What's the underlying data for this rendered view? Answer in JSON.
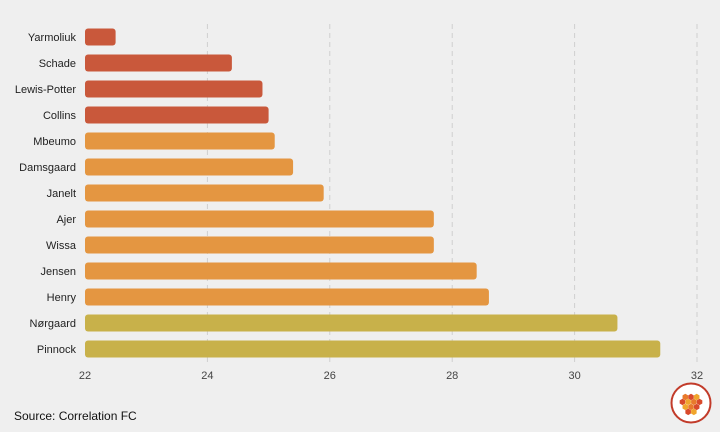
{
  "chart_data": {
    "type": "bar",
    "orientation": "horizontal",
    "categories": [
      "Yarmoliuk",
      "Schade",
      "Lewis-Potter",
      "Collins",
      "Mbeumo",
      "Damsgaard",
      "Janelt",
      "Ajer",
      "Wissa",
      "Jensen",
      "Henry",
      "Nørgaard",
      "Pinnock"
    ],
    "values": [
      22.5,
      24.4,
      24.9,
      25.0,
      25.1,
      25.4,
      25.9,
      27.7,
      27.7,
      28.4,
      28.6,
      30.7,
      31.4
    ],
    "xlim": [
      22,
      32
    ],
    "xticks": [
      "22",
      "24",
      "26",
      "28",
      "30",
      "32"
    ],
    "grid": "vertical dashed",
    "colors": {
      "bars": [
        "#c9583b",
        "#c9583b",
        "#c9583b",
        "#c9583b",
        "#e49641",
        "#e49641",
        "#e49641",
        "#e49641",
        "#e49641",
        "#e49641",
        "#e49641",
        "#c8b14a",
        "#c8b14a"
      ],
      "grid": "#cfcfcf",
      "background": "#efefef"
    }
  },
  "source": "Source: Correlation FC",
  "logo_icon": "honeycomb-logo-icon"
}
